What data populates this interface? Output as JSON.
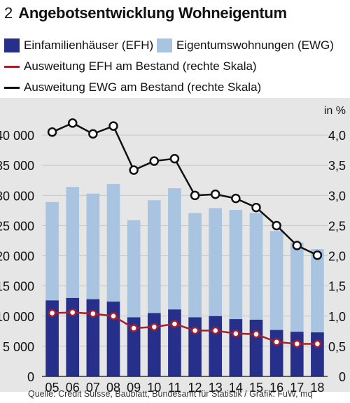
{
  "header": {
    "number": "2",
    "title": "Angebotsentwicklung Wohneigentum"
  },
  "legend": {
    "efh_bar": "Einfamilienhäuser (EFH)",
    "ewg_bar": "Eigentumswohnungen (EWG)",
    "efh_line": "Ausweitung EFH am Bestand (rechte Skala)",
    "ewg_line": "Ausweitung EWG am Bestand (rechte Skala)"
  },
  "source": "Quelle: Credit Suisse, Baublatt, Bundesamt für Statistik / Grafik: FuW, mq",
  "colors": {
    "efh": "#26308a",
    "ewg": "#a9c4e1",
    "efh_line": "#a3202c",
    "ewg_line": "#111111",
    "grid": "#c9c9c9",
    "bg": "#e6e6e6"
  },
  "chart_data": {
    "type": "bar",
    "stacked": true,
    "categories": [
      "05",
      "06",
      "07",
      "08",
      "09",
      "10",
      "11",
      "12",
      "13",
      "14",
      "15",
      "16",
      "17",
      "18"
    ],
    "series": [
      {
        "name": "Einfamilienhäuser (EFH)",
        "type": "bar",
        "axis": "left",
        "values": [
          12600,
          13000,
          12800,
          12400,
          9800,
          10500,
          11100,
          9800,
          10000,
          9500,
          9400,
          7700,
          7400,
          7300
        ]
      },
      {
        "name": "Eigentumswohnungen (EWG)",
        "type": "bar",
        "axis": "left",
        "values": [
          16300,
          18400,
          17500,
          19500,
          16100,
          18700,
          20100,
          17300,
          17900,
          18100,
          17700,
          16400,
          14800,
          13800
        ]
      },
      {
        "name": "Ausweitung EFH am Bestand (rechte Skala)",
        "type": "line",
        "axis": "right",
        "values": [
          1.05,
          1.06,
          1.04,
          1.0,
          0.8,
          0.82,
          0.87,
          0.76,
          0.76,
          0.71,
          0.7,
          0.57,
          0.54,
          0.54
        ]
      },
      {
        "name": "Ausweitung EWG am Bestand (rechte Skala)",
        "type": "line",
        "axis": "right",
        "values": [
          4.05,
          4.2,
          4.02,
          4.15,
          3.42,
          3.57,
          3.61,
          3.0,
          3.02,
          2.95,
          2.8,
          2.5,
          2.17,
          2.01
        ]
      }
    ],
    "ylim_left": [
      0,
      45000
    ],
    "yticks_left": [
      "0",
      "5 000",
      "10 000",
      "15 000",
      "20 000",
      "25 000",
      "30 000",
      "35 000",
      "40 000"
    ],
    "ylim_right": [
      0,
      4.5
    ],
    "yticks_right": [
      "0",
      "0,5",
      "1,0",
      "1,5",
      "2,0",
      "2,5",
      "3,0",
      "3,5",
      "4,0"
    ],
    "right_unit": "in %",
    "grid": true
  }
}
